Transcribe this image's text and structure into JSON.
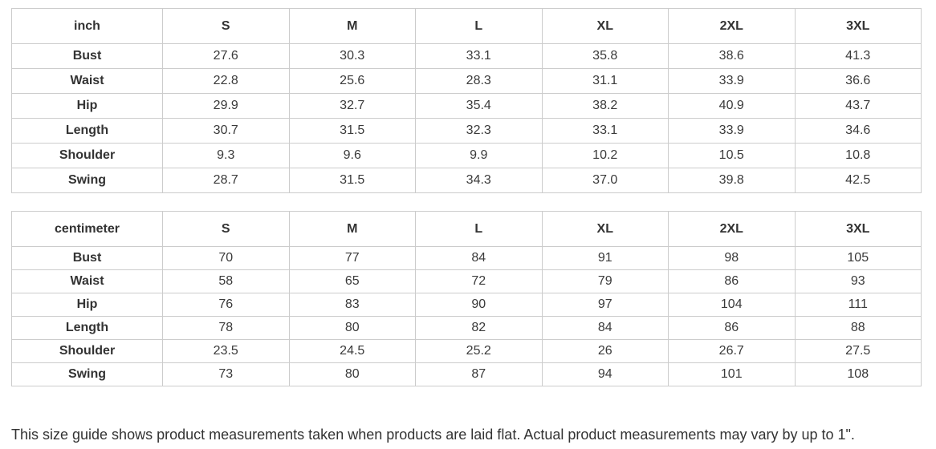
{
  "tables": [
    {
      "unit": "inch",
      "sizes": [
        "S",
        "M",
        "L",
        "XL",
        "2XL",
        "3XL"
      ],
      "rows": [
        {
          "label": "Bust",
          "values": [
            "27.6",
            "30.3",
            "33.1",
            "35.8",
            "38.6",
            "41.3"
          ]
        },
        {
          "label": "Waist",
          "values": [
            "22.8",
            "25.6",
            "28.3",
            "31.1",
            "33.9",
            "36.6"
          ]
        },
        {
          "label": "Hip",
          "values": [
            "29.9",
            "32.7",
            "35.4",
            "38.2",
            "40.9",
            "43.7"
          ]
        },
        {
          "label": "Length",
          "values": [
            "30.7",
            "31.5",
            "32.3",
            "33.1",
            "33.9",
            "34.6"
          ]
        },
        {
          "label": "Shoulder",
          "values": [
            "9.3",
            "9.6",
            "9.9",
            "10.2",
            "10.5",
            "10.8"
          ]
        },
        {
          "label": "Swing",
          "values": [
            "28.7",
            "31.5",
            "34.3",
            "37.0",
            "39.8",
            "42.5"
          ]
        }
      ]
    },
    {
      "unit": "centimeter",
      "sizes": [
        "S",
        "M",
        "L",
        "XL",
        "2XL",
        "3XL"
      ],
      "rows": [
        {
          "label": "Bust",
          "values": [
            "70",
            "77",
            "84",
            "91",
            "98",
            "105"
          ]
        },
        {
          "label": "Waist",
          "values": [
            "58",
            "65",
            "72",
            "79",
            "86",
            "93"
          ]
        },
        {
          "label": "Hip",
          "values": [
            "76",
            "83",
            "90",
            "97",
            "104",
            "111"
          ]
        },
        {
          "label": "Length",
          "values": [
            "78",
            "80",
            "82",
            "84",
            "86",
            "88"
          ]
        },
        {
          "label": "Shoulder",
          "values": [
            "23.5",
            "24.5",
            "25.2",
            "26",
            "26.7",
            "27.5"
          ]
        },
        {
          "label": "Swing",
          "values": [
            "73",
            "80",
            "87",
            "94",
            "101",
            "108"
          ]
        }
      ]
    }
  ],
  "note": "This size guide shows product measurements taken when products are laid flat. Actual product measurements may vary by up to 1\".",
  "colors": {
    "text": "#333333",
    "border": "#cccccc",
    "background": "#ffffff"
  }
}
